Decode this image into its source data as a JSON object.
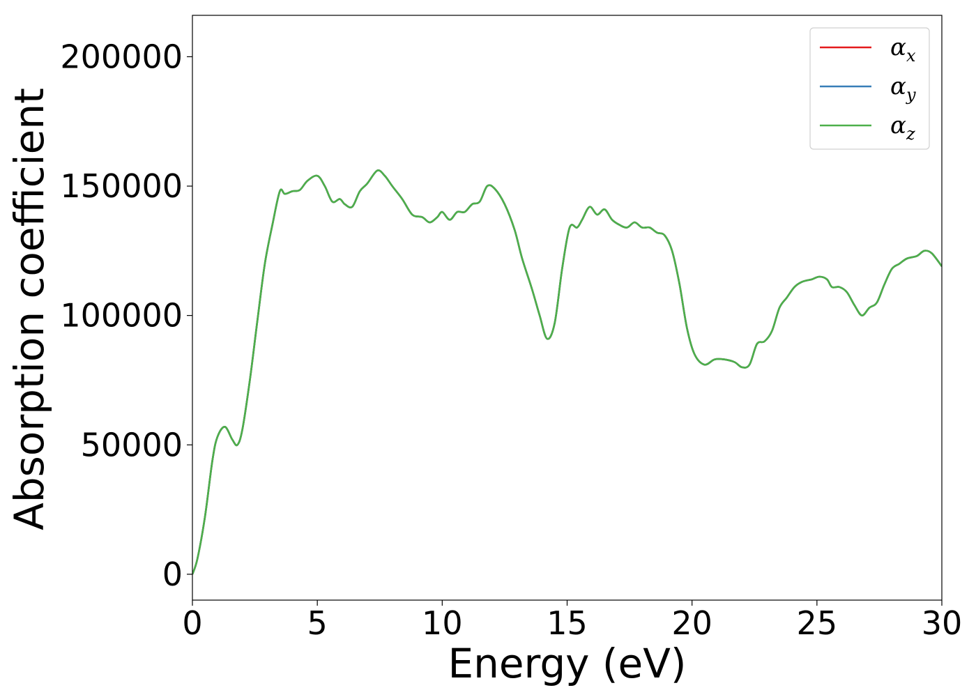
{
  "chart_data": {
    "type": "line",
    "title": "",
    "xlabel": "Energy (eV)",
    "ylabel": "Absorption coefficient",
    "xlim": [
      0,
      30
    ],
    "ylim": [
      -10000,
      216000
    ],
    "xticks": [
      0,
      5,
      10,
      15,
      20,
      25,
      30
    ],
    "xtick_labels": [
      "0",
      "5",
      "10",
      "15",
      "20",
      "25",
      "30"
    ],
    "yticks": [
      0,
      50000,
      100000,
      150000,
      200000
    ],
    "ytick_labels": [
      "0",
      "50000",
      "100000",
      "150000",
      "200000"
    ],
    "grid": false,
    "legend_position": "top-right",
    "x": [
      0,
      0.2,
      0.5,
      0.8,
      1.0,
      1.3,
      1.6,
      1.8,
      2.0,
      2.3,
      2.6,
      2.9,
      3.2,
      3.5,
      3.7,
      4.0,
      4.3,
      4.6,
      5.0,
      5.3,
      5.6,
      5.9,
      6.1,
      6.4,
      6.7,
      7.0,
      7.4,
      7.7,
      8.0,
      8.4,
      8.8,
      9.2,
      9.5,
      9.8,
      10.0,
      10.3,
      10.6,
      10.9,
      11.2,
      11.5,
      11.8,
      12.1,
      12.5,
      12.9,
      13.2,
      13.6,
      13.9,
      14.2,
      14.5,
      14.8,
      15.1,
      15.4,
      15.6,
      15.9,
      16.2,
      16.5,
      16.8,
      17.1,
      17.4,
      17.7,
      18.0,
      18.3,
      18.6,
      18.9,
      19.2,
      19.5,
      19.8,
      20.1,
      20.5,
      20.9,
      21.3,
      21.7,
      22.0,
      22.3,
      22.6,
      22.9,
      23.2,
      23.5,
      23.8,
      24.1,
      24.4,
      24.8,
      25.1,
      25.4,
      25.6,
      25.9,
      26.2,
      26.5,
      26.8,
      27.1,
      27.4,
      27.7,
      28.0,
      28.3,
      28.6,
      29.0,
      29.3,
      29.6,
      30.0
    ],
    "series": [
      {
        "name": "α_x",
        "color": "#e41a1c",
        "y": [
          0,
          6000,
          22000,
          44000,
          53000,
          57000,
          52000,
          50000,
          56000,
          75000,
          98000,
          120000,
          135000,
          148000,
          147000,
          148000,
          148500,
          152000,
          154000,
          150000,
          144000,
          145000,
          143000,
          142000,
          148000,
          151000,
          156000,
          154000,
          150000,
          145000,
          139000,
          138000,
          136000,
          138000,
          140000,
          137000,
          140000,
          140000,
          143000,
          144000,
          150000,
          149000,
          143000,
          133000,
          122000,
          110000,
          100000,
          91000,
          97000,
          118000,
          134000,
          134000,
          137000,
          142000,
          139000,
          141000,
          137000,
          135000,
          134000,
          136000,
          134000,
          134000,
          132000,
          131000,
          125000,
          112000,
          95000,
          85000,
          81000,
          83000,
          83000,
          82000,
          80000,
          81000,
          89000,
          90000,
          94000,
          103000,
          107000,
          111000,
          113000,
          114000,
          115000,
          114000,
          111000,
          111000,
          109000,
          104000,
          100000,
          103000,
          105000,
          112000,
          118000,
          120000,
          122000,
          123000,
          125000,
          124000,
          119000
        ]
      },
      {
        "name": "α_y",
        "color": "#377eb8",
        "y": [
          0,
          6000,
          22000,
          44000,
          53000,
          57000,
          52000,
          50000,
          56000,
          75000,
          98000,
          120000,
          135000,
          148000,
          147000,
          148000,
          148500,
          152000,
          154000,
          150000,
          144000,
          145000,
          143000,
          142000,
          148000,
          151000,
          156000,
          154000,
          150000,
          145000,
          139000,
          138000,
          136000,
          138000,
          140000,
          137000,
          140000,
          140000,
          143000,
          144000,
          150000,
          149000,
          143000,
          133000,
          122000,
          110000,
          100000,
          91000,
          97000,
          118000,
          134000,
          134000,
          137000,
          142000,
          139000,
          141000,
          137000,
          135000,
          134000,
          136000,
          134000,
          134000,
          132000,
          131000,
          125000,
          112000,
          95000,
          85000,
          81000,
          83000,
          83000,
          82000,
          80000,
          81000,
          89000,
          90000,
          94000,
          103000,
          107000,
          111000,
          113000,
          114000,
          115000,
          114000,
          111000,
          111000,
          109000,
          104000,
          100000,
          103000,
          105000,
          112000,
          118000,
          120000,
          122000,
          123000,
          125000,
          124000,
          119000
        ]
      },
      {
        "name": "α_z",
        "color": "#4daf4a",
        "y": [
          0,
          6000,
          22000,
          44000,
          53000,
          57000,
          52000,
          50000,
          56000,
          75000,
          98000,
          120000,
          135000,
          148000,
          147000,
          148000,
          148500,
          152000,
          154000,
          150000,
          144000,
          145000,
          143000,
          142000,
          148000,
          151000,
          156000,
          154000,
          150000,
          145000,
          139000,
          138000,
          136000,
          138000,
          140000,
          137000,
          140000,
          140000,
          143000,
          144000,
          150000,
          149000,
          143000,
          133000,
          122000,
          110000,
          100000,
          91000,
          97000,
          118000,
          134000,
          134000,
          137000,
          142000,
          139000,
          141000,
          137000,
          135000,
          134000,
          136000,
          134000,
          134000,
          132000,
          131000,
          125000,
          112000,
          95000,
          85000,
          81000,
          83000,
          83000,
          82000,
          80000,
          81000,
          89000,
          90000,
          94000,
          103000,
          107000,
          111000,
          113000,
          114000,
          115000,
          114000,
          111000,
          111000,
          109000,
          104000,
          100000,
          103000,
          105000,
          112000,
          118000,
          120000,
          122000,
          123000,
          125000,
          124000,
          119000
        ]
      }
    ]
  }
}
